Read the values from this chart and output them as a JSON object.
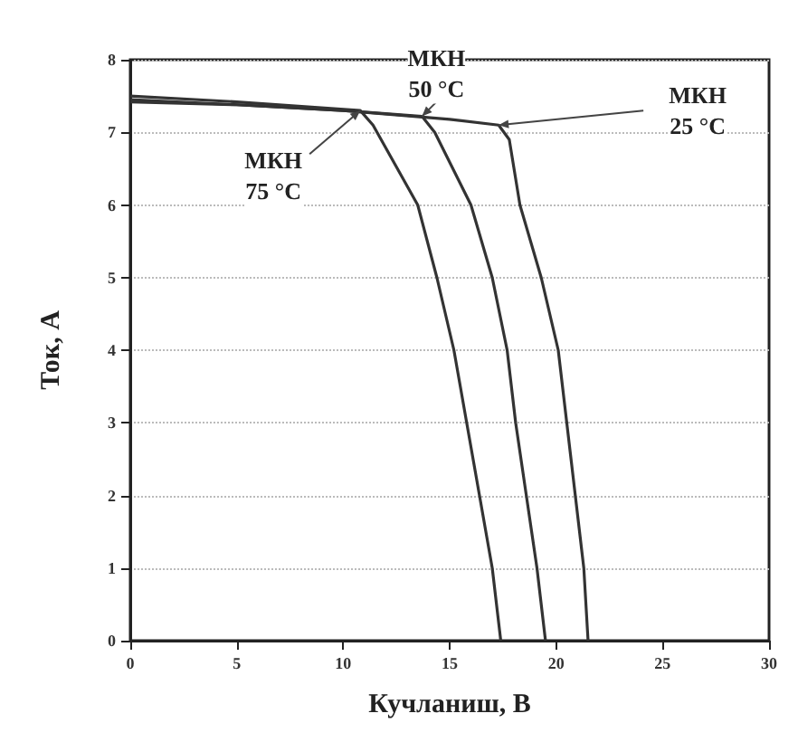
{
  "chart_data": {
    "type": "line",
    "xlabel": "Кучланиш, В",
    "ylabel": "Ток, А",
    "xlim": [
      0,
      30
    ],
    "ylim": [
      0,
      8
    ],
    "xticks": [
      0,
      5,
      10,
      15,
      20,
      25,
      30
    ],
    "yticks": [
      0,
      1,
      2,
      3,
      4,
      5,
      6,
      7,
      8
    ],
    "grid": "y",
    "marker": "none",
    "line_style": "solid",
    "series": [
      {
        "color": "#333333",
        "x": [
          0,
          5,
          10,
          15,
          17.3,
          17.8,
          18.3,
          19.3,
          20.1,
          20.5,
          20.9,
          21.3,
          21.5
        ],
        "values": [
          7.45,
          7.38,
          7.3,
          7.18,
          7.1,
          6.9,
          6,
          5,
          4,
          3,
          2,
          1,
          0
        ]
      },
      {
        "color": "#333333",
        "x": [
          0,
          5,
          10,
          13.7,
          14.3,
          16.0,
          17.0,
          17.7,
          18.1,
          18.6,
          19.1,
          19.5
        ],
        "values": [
          7.42,
          7.38,
          7.3,
          7.22,
          7.0,
          6,
          5,
          4,
          3,
          2,
          1,
          0
        ]
      },
      {
        "color": "#333333",
        "x": [
          0,
          5,
          10.8,
          11.4,
          13.5,
          14.4,
          15.2,
          15.8,
          16.4,
          17.0,
          17.4
        ],
        "values": [
          7.5,
          7.42,
          7.3,
          7.1,
          6,
          5,
          4,
          3,
          2,
          1,
          0
        ]
      }
    ],
    "annotations": [
      {
        "text": "МКН\n50 °C",
        "x": 13.7,
        "y": 7.22
      },
      {
        "text": "МКН\n25 °C",
        "x": 17.3,
        "y": 7.1
      },
      {
        "text": "МКН\n75 °C",
        "x": 10.8,
        "y": 7.3
      }
    ]
  }
}
